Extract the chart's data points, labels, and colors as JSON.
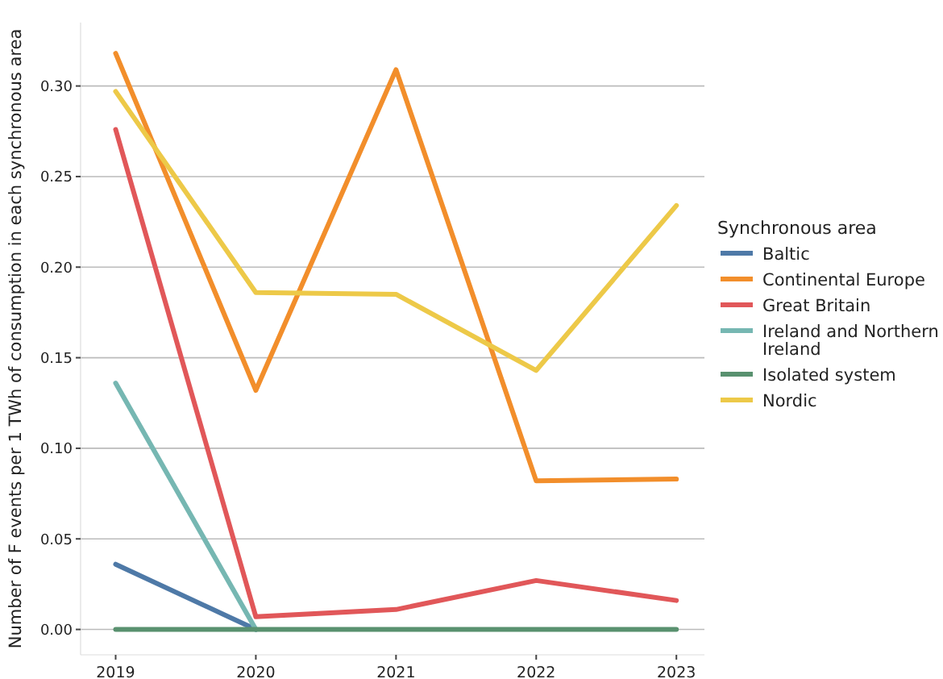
{
  "chart_data": {
    "type": "line",
    "ylabel": "Number of F events per 1 TWh of consumption in each synchronous area",
    "legend_title": "Synchronous area",
    "x": [
      2019,
      2020,
      2021,
      2022,
      2023
    ],
    "xlim": [
      2018.75,
      2023.2
    ],
    "xticks": [
      2019,
      2020,
      2021,
      2022,
      2023
    ],
    "ylim": [
      -0.014,
      0.335
    ],
    "yticks": [
      {
        "value": 0,
        "label": "0.00"
      },
      {
        "value": 0.05,
        "label": "0.05"
      },
      {
        "value": 0.1,
        "label": "0.10"
      },
      {
        "value": 0.15,
        "label": "0.15"
      },
      {
        "value": 0.2,
        "label": "0.20"
      },
      {
        "value": 0.25,
        "label": "0.25"
      },
      {
        "value": 0.3,
        "label": "0.30"
      }
    ],
    "grid": "y",
    "legend": "right",
    "marker": "none",
    "line_style": "solid",
    "series": [
      {
        "name": "Baltic",
        "color": "#4e79a7",
        "values": [
          0.036,
          0,
          null,
          null,
          null
        ]
      },
      {
        "name": "Continental Europe",
        "color": "#f28e2b",
        "values": [
          0.318,
          0.132,
          0.309,
          0.082,
          0.083
        ]
      },
      {
        "name": "Great Britain",
        "color": "#e15759",
        "values": [
          0.276,
          0.007,
          0.011,
          0.027,
          0.016
        ]
      },
      {
        "name": "Ireland and Northern Ireland",
        "color": "#76b7b2",
        "values": [
          0.136,
          0,
          null,
          null,
          null
        ]
      },
      {
        "name": "Isolated system",
        "color": "#59916f",
        "values": [
          0,
          0,
          0,
          0,
          0
        ]
      },
      {
        "name": "Nordic",
        "color": "#edc948",
        "values": [
          0.297,
          0.186,
          0.185,
          0.143,
          0.234
        ]
      }
    ]
  }
}
